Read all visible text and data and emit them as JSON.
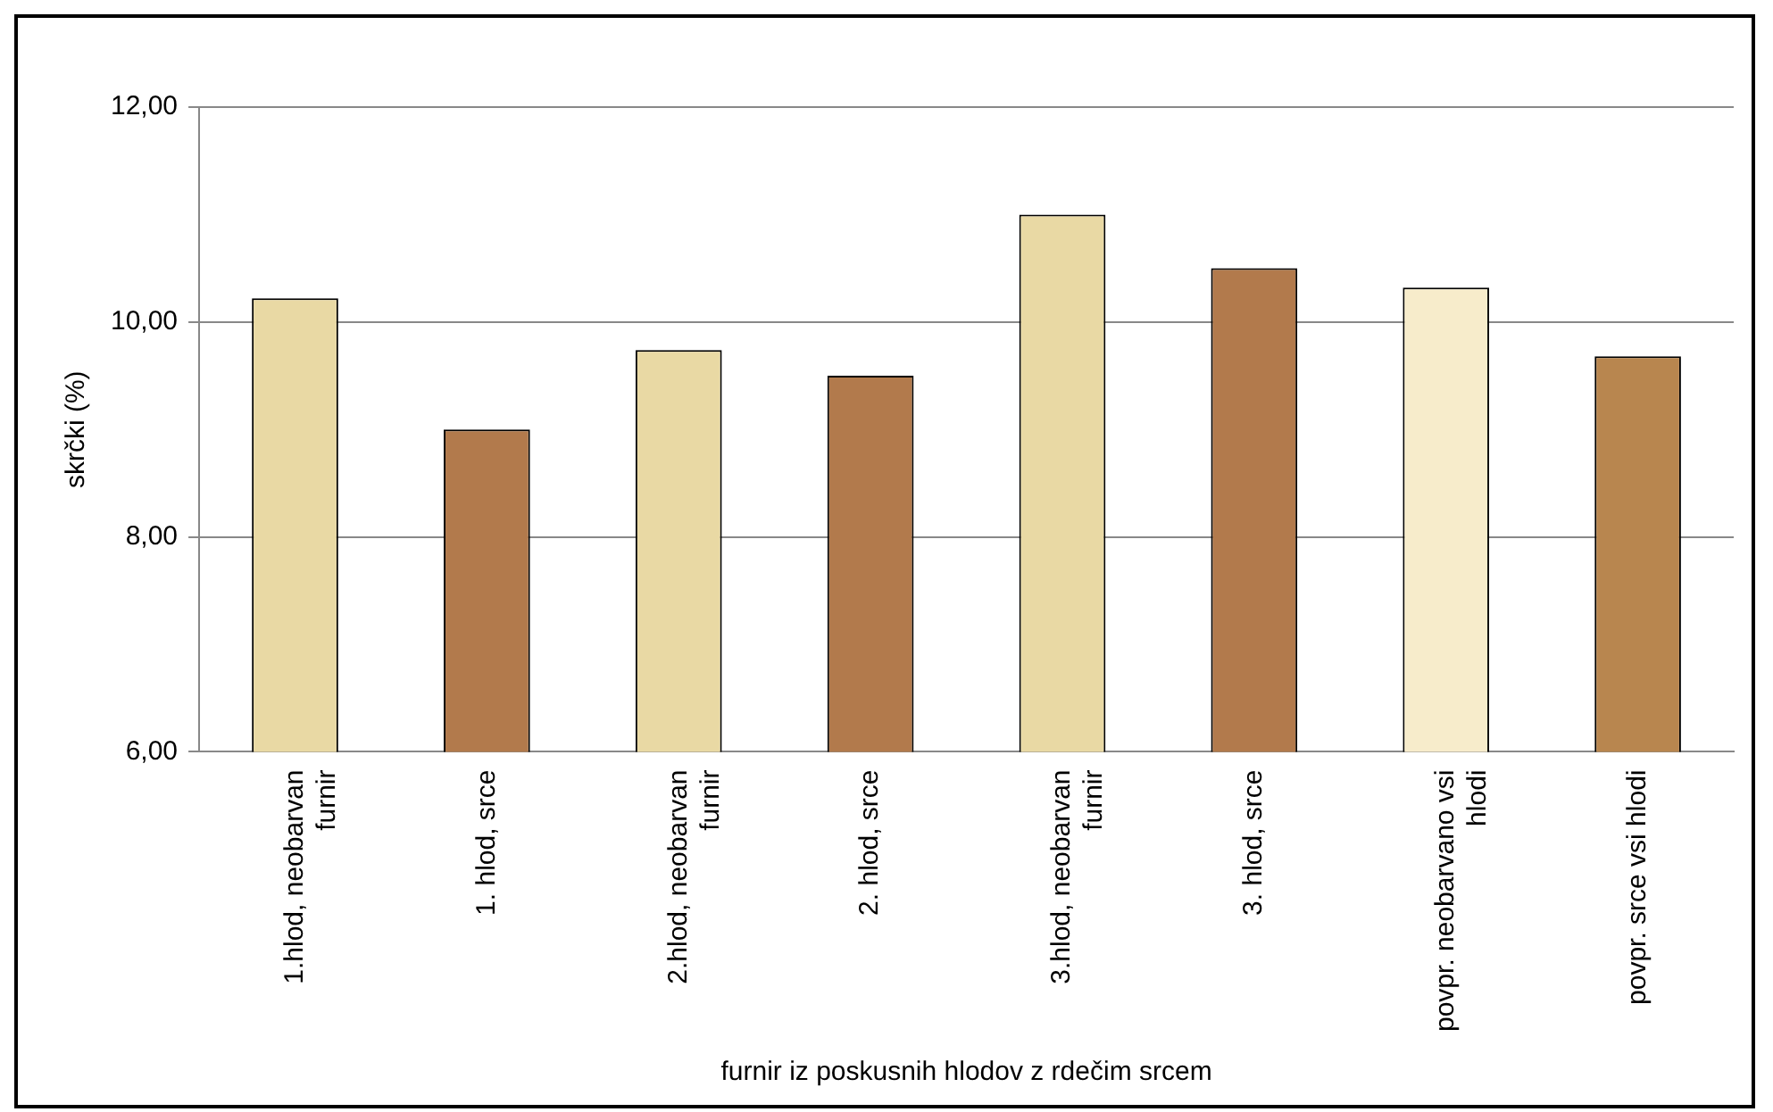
{
  "chart_data": {
    "type": "bar",
    "xlabel": "furnir iz poskusnih hlodov z rdečim srcem",
    "ylabel": "skrčki (%)",
    "categories": [
      "1.hlod, neobarvan furnir",
      "1. hlod, srce",
      "2.hlod, neobarvan furnir",
      "2. hlod, srce",
      "3.hlod, neobarvan furnir",
      "3. hlod, srce",
      "povpr. neobarvano vsi hlodi",
      "povpr. srce vsi hlodi"
    ],
    "values": [
      10.22,
      9.0,
      9.74,
      9.5,
      11.0,
      10.5,
      10.32,
      9.68
    ],
    "colors": [
      "#e9d9a4",
      "#b27a4c",
      "#e9d9a4",
      "#b27a4c",
      "#e9d9a4",
      "#b27a4c",
      "#f7eccb",
      "#b8864f"
    ],
    "ylim": [
      6,
      12
    ],
    "yticks": [
      {
        "value": 6,
        "label": "6,00"
      },
      {
        "value": 8,
        "label": "8,00"
      },
      {
        "value": 10,
        "label": "10,00"
      },
      {
        "value": 12,
        "label": "12,00"
      }
    ],
    "grid": "y",
    "legend": false
  }
}
